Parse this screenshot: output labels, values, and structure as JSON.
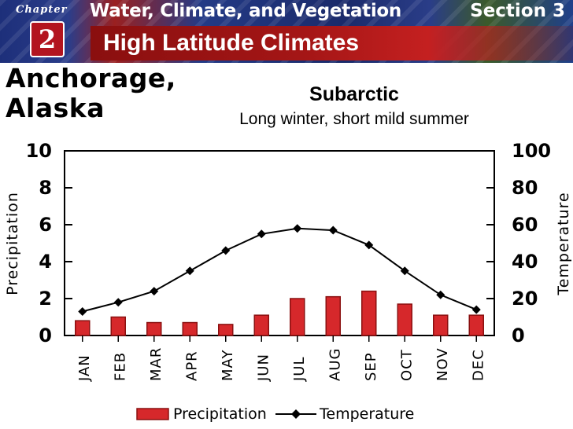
{
  "header": {
    "chapter_word": "Chapter",
    "chapter_number": "2",
    "series_title": "Water, Climate, and Vegetation",
    "section": "Section 3",
    "page_title": "High Latitude Climates"
  },
  "city": {
    "line1": "Anchorage,",
    "line2": "Alaska"
  },
  "climate": {
    "type": "Subarctic",
    "description": "Long winter, short mild summer"
  },
  "colors": {
    "bar": "#d6282b",
    "bar_dark": "#8a1010",
    "line": "#000000"
  },
  "chart_data": {
    "type": "bar",
    "categories": [
      "JAN",
      "FEB",
      "MAR",
      "APR",
      "MAY",
      "JUN",
      "JUL",
      "AUG",
      "SEP",
      "OCT",
      "NOV",
      "DEC"
    ],
    "series": [
      {
        "name": "Precipitation",
        "kind": "bar",
        "axis": "left",
        "values": [
          0.8,
          1.0,
          0.7,
          0.7,
          0.6,
          1.1,
          2.0,
          2.1,
          2.4,
          1.7,
          1.1,
          1.1
        ]
      },
      {
        "name": "Temperature",
        "kind": "line",
        "axis": "right",
        "values": [
          13,
          18,
          24,
          35,
          46,
          55,
          58,
          57,
          49,
          35,
          22,
          14
        ]
      }
    ],
    "ylabel_left": "Precipitation",
    "ylabel_right": "Temperature",
    "ylim_left": [
      0,
      10
    ],
    "ylim_right": [
      0,
      100
    ],
    "yticks_left": [
      "0",
      "2",
      "4",
      "6",
      "8",
      "10"
    ],
    "yticks_right": [
      "0",
      "20",
      "40",
      "60",
      "80",
      "100"
    ],
    "legend": {
      "precipitation": "Precipitation",
      "temperature": "Temperature",
      "placement": "bottom"
    }
  }
}
